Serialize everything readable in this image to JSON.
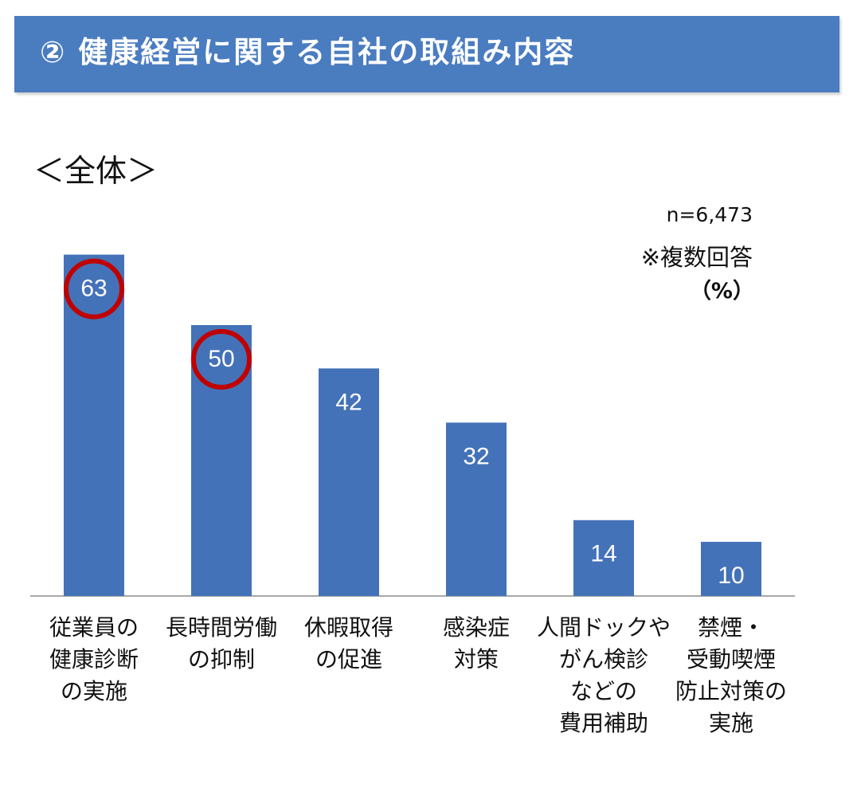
{
  "header": {
    "title": "② 健康経営に関する自社の取組み内容"
  },
  "subtitle": "＜全体＞",
  "notes": {
    "sample_size": "n=6,473",
    "multiple_answers": "※複数回答",
    "unit": "（%）"
  },
  "colors": {
    "banner": "#4a7cc0",
    "bar": "#4472b8",
    "highlight_circle": "#c00000"
  },
  "chart_data": {
    "type": "bar",
    "title": "",
    "xlabel": "",
    "ylabel": "",
    "ylim": [
      0,
      70
    ],
    "grid": false,
    "categories": [
      "従業員の\n健康診断\nの実施",
      "長時間労働\nの抑制",
      "休暇取得\nの促進",
      "感染症\n対策",
      "人間ドックや\nがん検診\nなどの\n費用補助",
      "禁煙・\n受動喫煙\n防止対策の\n実施"
    ],
    "values": [
      63,
      50,
      42,
      32,
      14,
      10
    ],
    "highlighted": [
      true,
      true,
      false,
      false,
      false,
      false
    ]
  }
}
